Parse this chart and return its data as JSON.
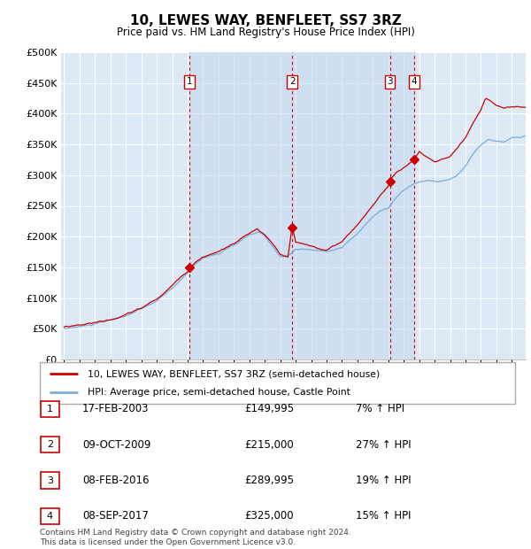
{
  "title": "10, LEWES WAY, BENFLEET, SS7 3RZ",
  "subtitle": "Price paid vs. HM Land Registry's House Price Index (HPI)",
  "legend_line1": "10, LEWES WAY, BENFLEET, SS7 3RZ (semi-detached house)",
  "legend_line2": "HPI: Average price, semi-detached house, Castle Point",
  "transactions": [
    {
      "num": 1,
      "date": "17-FEB-2003",
      "price": "£149,995",
      "hpi_pct": "7% ↑ HPI"
    },
    {
      "num": 2,
      "date": "09-OCT-2009",
      "price": "£215,000",
      "hpi_pct": "27% ↑ HPI"
    },
    {
      "num": 3,
      "date": "08-FEB-2016",
      "price": "£289,995",
      "hpi_pct": "19% ↑ HPI"
    },
    {
      "num": 4,
      "date": "08-SEP-2017",
      "price": "£325,000",
      "hpi_pct": "15% ↑ HPI"
    }
  ],
  "transaction_dates_decimal": [
    2003.12,
    2009.77,
    2016.1,
    2017.69
  ],
  "transaction_prices": [
    149995,
    215000,
    289995,
    325000
  ],
  "ylim": [
    0,
    500000
  ],
  "yticks": [
    0,
    50000,
    100000,
    150000,
    200000,
    250000,
    300000,
    350000,
    400000,
    450000,
    500000
  ],
  "background_color": "#ffffff",
  "chart_bg_color": "#dce9f5",
  "grid_color": "#ffffff",
  "hpi_line_color": "#7aacdb",
  "price_line_color": "#cc0000",
  "dashed_line_color": "#cc0000",
  "span_color": "#c5d9ef",
  "footnote_line1": "Contains HM Land Registry data © Crown copyright and database right 2024.",
  "footnote_line2": "This data is licensed under the Open Government Licence v3.0."
}
